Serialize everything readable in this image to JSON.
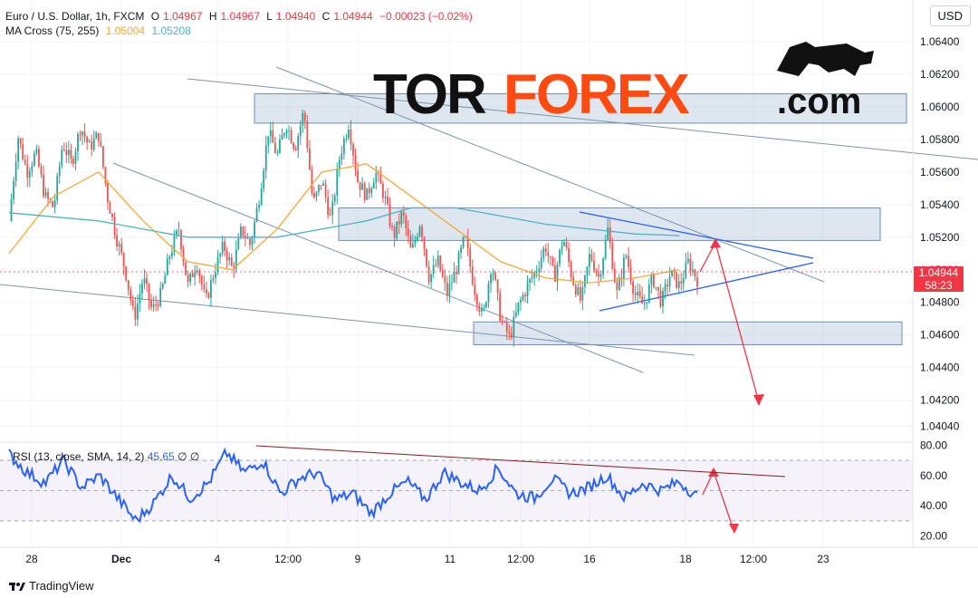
{
  "header": {
    "symbol": "Euro / U.S. Dollar, 1h, FXCM",
    "open_label": "O",
    "open": "1.04967",
    "high_label": "H",
    "high": "1.04967",
    "low_label": "L",
    "low": "1.04940",
    "close_label": "C",
    "close": "1.04944",
    "change": "−0.00023 (−0.02%)",
    "ma_label": "MA Cross (75, 255)",
    "ma_fast": "1.05004",
    "ma_slow": "1.05208"
  },
  "currency_button": "USD",
  "watermark": {
    "left": "TOR",
    "right": "FOREX",
    "suffix": ".com"
  },
  "price_tag": {
    "price": "1.04944",
    "countdown": "58:23"
  },
  "rsi_header": {
    "label": "RSI (13, close, SMA, 14, 2)",
    "value": "45.65",
    "nil1": "∅",
    "nil2": "∅"
  },
  "footer": {
    "brand": "TradingView"
  },
  "colors": {
    "up": "#26a69a",
    "down": "#ef5350",
    "ma_fast": "#f6a93b",
    "ma_slow": "#4fb3c8",
    "rsi": "#2962ff",
    "arrow": "#f23645",
    "zone_fill": "#b6c8dc",
    "trend": "#7d95ad"
  },
  "chart_data": {
    "type": "candlestick",
    "title": "Euro / U.S. Dollar, 1h, FXCM",
    "y_axis": {
      "ylim": [
        1.0402,
        1.065
      ],
      "ticks": [
        "1.06400",
        "1.06200",
        "1.06000",
        "1.05800",
        "1.05600",
        "1.05400",
        "1.05200",
        "1.05000",
        "1.04800",
        "1.04600",
        "1.04400",
        "1.04200",
        "1.04040"
      ]
    },
    "x_axis": {
      "ticks": [
        "28",
        "Dec",
        "4",
        "12:00",
        "9",
        "11",
        "12:00",
        "16",
        "18",
        "12:00",
        "23"
      ]
    },
    "price_path": [
      [
        0,
        1.053
      ],
      [
        1,
        1.0582
      ],
      [
        2,
        1.056
      ],
      [
        3,
        1.0572
      ],
      [
        4,
        1.0545
      ],
      [
        5,
        1.0538
      ],
      [
        6,
        1.0578
      ],
      [
        7,
        1.0565
      ],
      [
        8,
        1.0588
      ],
      [
        9,
        1.0575
      ],
      [
        10,
        1.0583
      ],
      [
        11,
        1.0545
      ],
      [
        12,
        1.052
      ],
      [
        13,
        1.05
      ],
      [
        14,
        1.047
      ],
      [
        15,
        1.0495
      ],
      [
        16,
        1.0475
      ],
      [
        17,
        1.0485
      ],
      [
        18,
        1.051
      ],
      [
        19,
        1.0525
      ],
      [
        20,
        1.049
      ],
      [
        21,
        1.0505
      ],
      [
        22,
        1.048
      ],
      [
        23,
        1.05
      ],
      [
        24,
        1.0515
      ],
      [
        25,
        1.05
      ],
      [
        26,
        1.0525
      ],
      [
        27,
        1.0515
      ],
      [
        28,
        1.0545
      ],
      [
        29,
        1.0585
      ],
      [
        30,
        1.057
      ],
      [
        31,
        1.059
      ],
      [
        32,
        1.0575
      ],
      [
        33,
        1.0598
      ],
      [
        34,
        1.054
      ],
      [
        35,
        1.0555
      ],
      [
        36,
        1.053
      ],
      [
        37,
        1.057
      ],
      [
        38,
        1.059
      ],
      [
        39,
        1.0555
      ],
      [
        40,
        1.0545
      ],
      [
        41,
        1.056
      ],
      [
        42,
        1.0545
      ],
      [
        43,
        1.052
      ],
      [
        44,
        1.0535
      ],
      [
        45,
        1.051
      ],
      [
        46,
        1.053
      ],
      [
        47,
        1.0495
      ],
      [
        48,
        1.0505
      ],
      [
        49,
        1.0485
      ],
      [
        50,
        1.05
      ],
      [
        51,
        1.052
      ],
      [
        52,
        1.049
      ],
      [
        53,
        1.047
      ],
      [
        54,
        1.0505
      ],
      [
        55,
        1.047
      ],
      [
        56,
        1.0458
      ],
      [
        57,
        1.0478
      ],
      [
        58,
        1.049
      ],
      [
        59,
        1.05
      ],
      [
        60,
        1.0515
      ],
      [
        61,
        1.0495
      ],
      [
        62,
        1.052
      ],
      [
        63,
        1.0495
      ],
      [
        64,
        1.048
      ],
      [
        65,
        1.051
      ],
      [
        66,
        1.0495
      ],
      [
        67,
        1.0525
      ],
      [
        68,
        1.0485
      ],
      [
        69,
        1.051
      ],
      [
        70,
        1.0485
      ],
      [
        71,
        1.0478
      ],
      [
        72,
        1.0495
      ],
      [
        73,
        1.048
      ],
      [
        74,
        1.0498
      ],
      [
        75,
        1.049
      ],
      [
        76,
        1.0505
      ],
      [
        77,
        1.0494
      ]
    ],
    "ma_fast": [
      [
        0,
        1.051
      ],
      [
        5,
        1.0545
      ],
      [
        10,
        1.056
      ],
      [
        15,
        1.053
      ],
      [
        20,
        1.0505
      ],
      [
        25,
        1.05
      ],
      [
        30,
        1.0525
      ],
      [
        35,
        1.056
      ],
      [
        40,
        1.0565
      ],
      [
        45,
        1.0545
      ],
      [
        50,
        1.0525
      ],
      [
        55,
        1.0505
      ],
      [
        60,
        1.0495
      ],
      [
        65,
        1.0492
      ],
      [
        70,
        1.0495
      ],
      [
        75,
        1.05
      ]
    ],
    "ma_slow": [
      [
        0,
        1.0535
      ],
      [
        10,
        1.053
      ],
      [
        20,
        1.052
      ],
      [
        30,
        1.052
      ],
      [
        40,
        1.053
      ],
      [
        45,
        1.0538
      ],
      [
        50,
        1.0538
      ],
      [
        55,
        1.0533
      ],
      [
        60,
        1.0528
      ],
      [
        65,
        1.0525
      ],
      [
        70,
        1.0522
      ],
      [
        75,
        1.0521
      ]
    ],
    "zones": [
      {
        "x": [
          23,
          63
        ],
        "y": [
          1.059,
          1.0608
        ]
      },
      {
        "x": [
          30,
          79
        ],
        "y": [
          1.0518,
          1.0538
        ]
      },
      {
        "x": [
          42,
          81
        ],
        "y": [
          1.0454,
          1.0468
        ]
      }
    ],
    "rsi": {
      "ylim": [
        15,
        82
      ],
      "ticks": [
        "80.00",
        "60.00",
        "40.00",
        "20.00"
      ],
      "bands": [
        30,
        50,
        70
      ],
      "path": [
        [
          0,
          74
        ],
        [
          2,
          62
        ],
        [
          4,
          55
        ],
        [
          6,
          70
        ],
        [
          8,
          52
        ],
        [
          10,
          60
        ],
        [
          12,
          45
        ],
        [
          14,
          30
        ],
        [
          16,
          42
        ],
        [
          18,
          60
        ],
        [
          20,
          45
        ],
        [
          22,
          55
        ],
        [
          24,
          75
        ],
        [
          26,
          62
        ],
        [
          28,
          70
        ],
        [
          30,
          48
        ],
        [
          32,
          58
        ],
        [
          34,
          62
        ],
        [
          36,
          44
        ],
        [
          38,
          48
        ],
        [
          40,
          35
        ],
        [
          42,
          48
        ],
        [
          44,
          56
        ],
        [
          46,
          44
        ],
        [
          48,
          62
        ],
        [
          50,
          55
        ],
        [
          52,
          50
        ],
        [
          54,
          65
        ],
        [
          56,
          48
        ],
        [
          58,
          45
        ],
        [
          60,
          58
        ],
        [
          62,
          48
        ],
        [
          64,
          52
        ],
        [
          66,
          60
        ],
        [
          68,
          45
        ],
        [
          70,
          55
        ],
        [
          72,
          50
        ],
        [
          74,
          56
        ],
        [
          76,
          46
        ]
      ]
    }
  }
}
